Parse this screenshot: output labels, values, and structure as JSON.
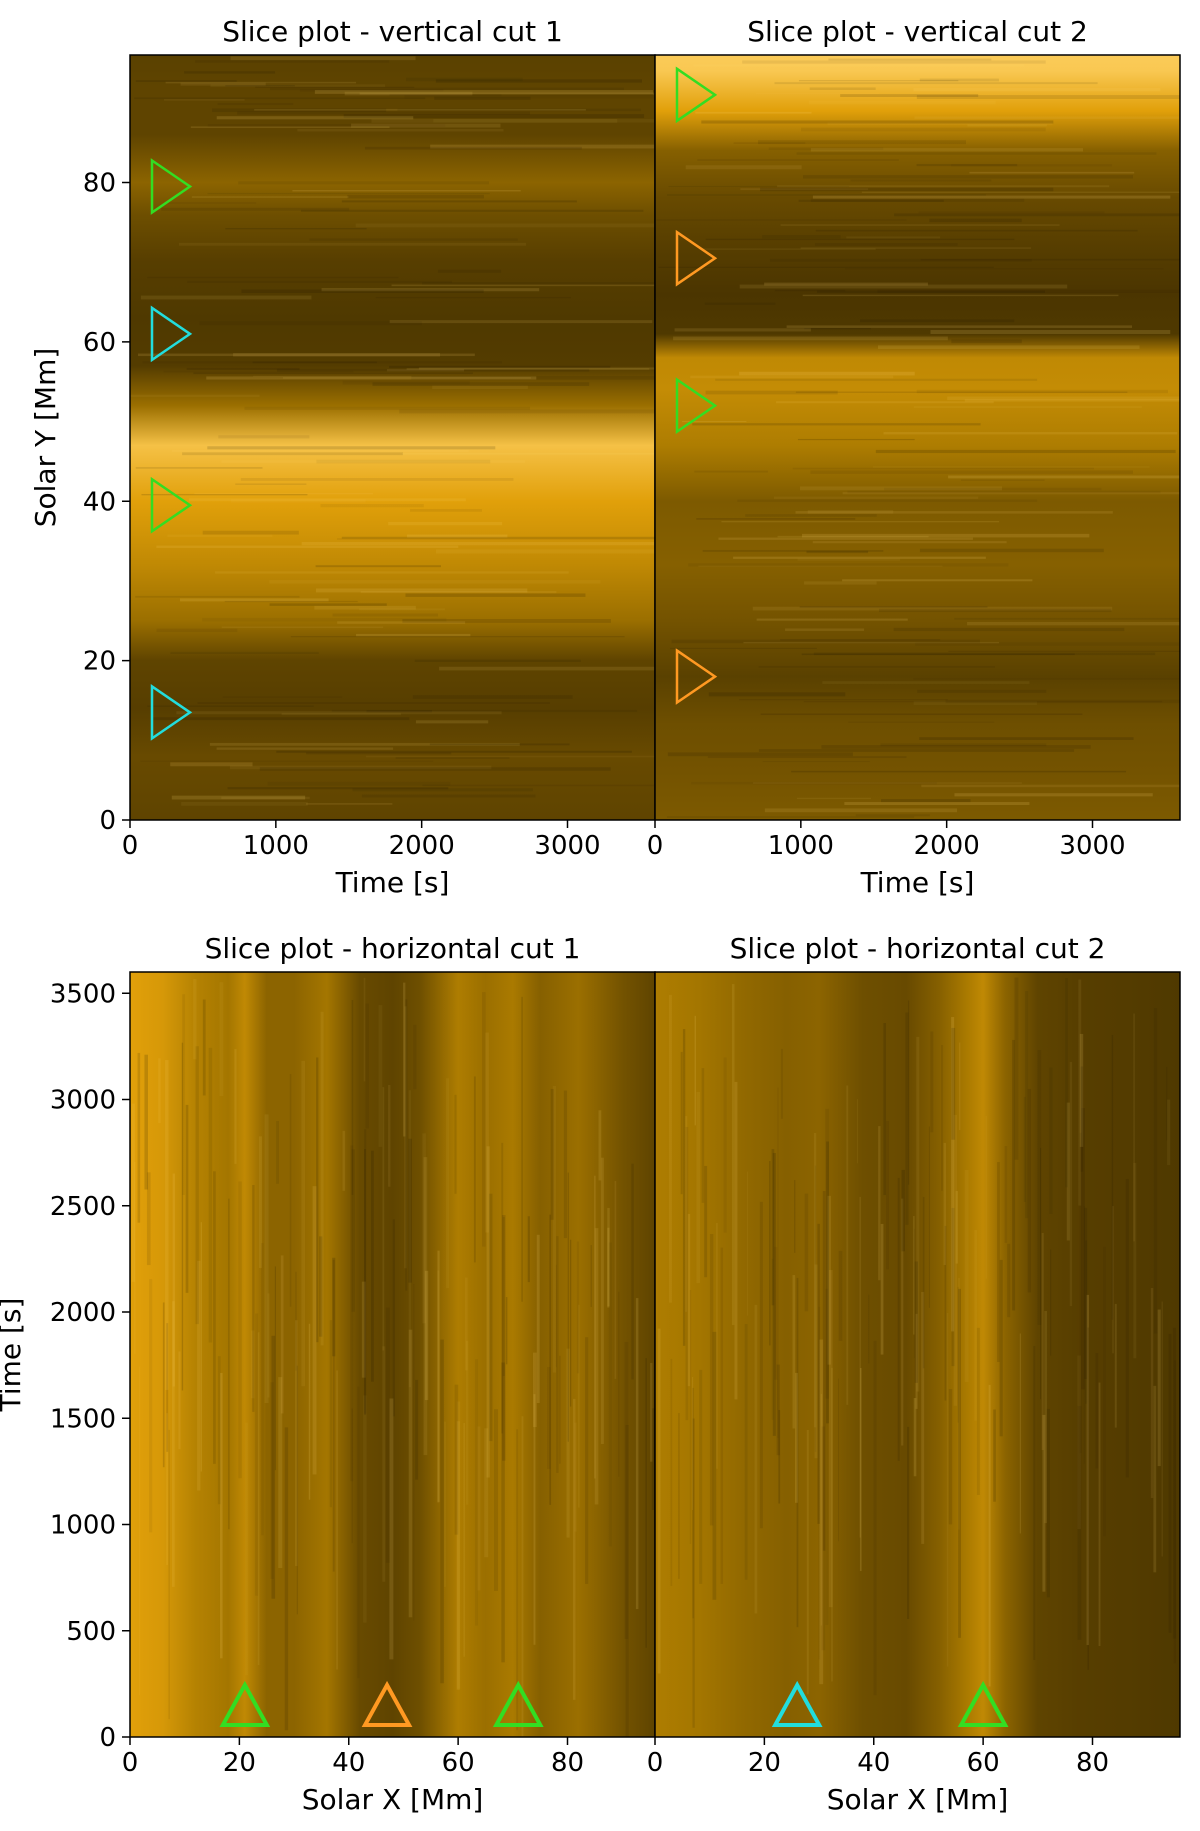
{
  "figure": {
    "colors": {
      "dark": "#3a2a00",
      "mid": "#7a5800",
      "bright": "#d8a000",
      "peak": "#ffd060",
      "marker_green": "#33dd22",
      "marker_cyan": "#22dddd",
      "marker_orange": "#ff9922"
    }
  },
  "chart_data": [
    {
      "type": "heatmap",
      "title": "Slice plot - vertical cut 1",
      "xlabel": "Time [s]",
      "ylabel": "Solar Y [Mm]",
      "xlim": [
        0,
        3600
      ],
      "ylim": [
        0,
        96
      ],
      "xticks": [
        0,
        1000,
        2000,
        3000
      ],
      "yticks": [
        0,
        20,
        40,
        60,
        80
      ],
      "orientation": "horizontal-bands",
      "intensity_profile": [
        {
          "pos": 0,
          "i": 0.35
        },
        {
          "pos": 8,
          "i": 0.38
        },
        {
          "pos": 14,
          "i": 0.3
        },
        {
          "pos": 20,
          "i": 0.35
        },
        {
          "pos": 25,
          "i": 0.55
        },
        {
          "pos": 32,
          "i": 0.7
        },
        {
          "pos": 40,
          "i": 0.85
        },
        {
          "pos": 47,
          "i": 0.95
        },
        {
          "pos": 52,
          "i": 0.55
        },
        {
          "pos": 57,
          "i": 0.28
        },
        {
          "pos": 63,
          "i": 0.25
        },
        {
          "pos": 70,
          "i": 0.3
        },
        {
          "pos": 76,
          "i": 0.4
        },
        {
          "pos": 80,
          "i": 0.5
        },
        {
          "pos": 86,
          "i": 0.35
        },
        {
          "pos": 92,
          "i": 0.35
        },
        {
          "pos": 96,
          "i": 0.32
        }
      ],
      "markers": [
        {
          "pos": 79.5,
          "color": "green"
        },
        {
          "pos": 61,
          "color": "cyan"
        },
        {
          "pos": 39.5,
          "color": "green"
        },
        {
          "pos": 13.5,
          "color": "cyan"
        }
      ]
    },
    {
      "type": "heatmap",
      "title": "Slice plot - vertical cut 2",
      "xlabel": "Time [s]",
      "ylabel": "",
      "xlim": [
        0,
        3600
      ],
      "ylim": [
        0,
        96
      ],
      "xticks": [
        0,
        1000,
        2000,
        3000
      ],
      "yticks": [],
      "orientation": "horizontal-bands",
      "intensity_profile": [
        {
          "pos": 0,
          "i": 0.45
        },
        {
          "pos": 6,
          "i": 0.42
        },
        {
          "pos": 12,
          "i": 0.4
        },
        {
          "pos": 18,
          "i": 0.32
        },
        {
          "pos": 25,
          "i": 0.42
        },
        {
          "pos": 32,
          "i": 0.48
        },
        {
          "pos": 40,
          "i": 0.45
        },
        {
          "pos": 47,
          "i": 0.62
        },
        {
          "pos": 54,
          "i": 0.72
        },
        {
          "pos": 58,
          "i": 0.7
        },
        {
          "pos": 61,
          "i": 0.25
        },
        {
          "pos": 66,
          "i": 0.22
        },
        {
          "pos": 72,
          "i": 0.3
        },
        {
          "pos": 78,
          "i": 0.38
        },
        {
          "pos": 84,
          "i": 0.48
        },
        {
          "pos": 89,
          "i": 0.85
        },
        {
          "pos": 94,
          "i": 0.97
        },
        {
          "pos": 96,
          "i": 0.98
        }
      ],
      "markers": [
        {
          "pos": 91,
          "color": "green"
        },
        {
          "pos": 70.5,
          "color": "orange"
        },
        {
          "pos": 52,
          "color": "green"
        },
        {
          "pos": 18,
          "color": "orange"
        }
      ]
    },
    {
      "type": "heatmap",
      "title": "Slice plot - horizontal cut 1",
      "xlabel": "Solar X [Mm]",
      "ylabel": "Time [s]",
      "xlim": [
        0,
        96
      ],
      "ylim": [
        0,
        3600
      ],
      "xticks": [
        0,
        20,
        40,
        60,
        80
      ],
      "yticks": [
        0,
        500,
        1000,
        1500,
        2000,
        2500,
        3000,
        3500
      ],
      "orientation": "vertical-bands",
      "intensity_profile": [
        {
          "pos": 0,
          "i": 0.85
        },
        {
          "pos": 6,
          "i": 0.8
        },
        {
          "pos": 12,
          "i": 0.65
        },
        {
          "pos": 18,
          "i": 0.58
        },
        {
          "pos": 21,
          "i": 0.7
        },
        {
          "pos": 25,
          "i": 0.5
        },
        {
          "pos": 30,
          "i": 0.5
        },
        {
          "pos": 36,
          "i": 0.58
        },
        {
          "pos": 42,
          "i": 0.38
        },
        {
          "pos": 48,
          "i": 0.35
        },
        {
          "pos": 53,
          "i": 0.4
        },
        {
          "pos": 60,
          "i": 0.62
        },
        {
          "pos": 65,
          "i": 0.55
        },
        {
          "pos": 70,
          "i": 0.6
        },
        {
          "pos": 75,
          "i": 0.48
        },
        {
          "pos": 82,
          "i": 0.55
        },
        {
          "pos": 90,
          "i": 0.42
        },
        {
          "pos": 96,
          "i": 0.35
        }
      ],
      "markers": [
        {
          "pos": 21,
          "color": "green"
        },
        {
          "pos": 47,
          "color": "orange"
        },
        {
          "pos": 71,
          "color": "green"
        }
      ]
    },
    {
      "type": "heatmap",
      "title": "Slice plot - horizontal cut 2",
      "xlabel": "Solar X [Mm]",
      "ylabel": "",
      "xlim": [
        0,
        96
      ],
      "ylim": [
        0,
        3600
      ],
      "xticks": [
        0,
        20,
        40,
        60,
        80
      ],
      "yticks": [],
      "orientation": "vertical-bands",
      "intensity_profile": [
        {
          "pos": 0,
          "i": 0.62
        },
        {
          "pos": 8,
          "i": 0.58
        },
        {
          "pos": 16,
          "i": 0.52
        },
        {
          "pos": 24,
          "i": 0.48
        },
        {
          "pos": 30,
          "i": 0.5
        },
        {
          "pos": 38,
          "i": 0.4
        },
        {
          "pos": 46,
          "i": 0.38
        },
        {
          "pos": 52,
          "i": 0.48
        },
        {
          "pos": 57,
          "i": 0.6
        },
        {
          "pos": 60,
          "i": 0.7
        },
        {
          "pos": 64,
          "i": 0.5
        },
        {
          "pos": 70,
          "i": 0.35
        },
        {
          "pos": 78,
          "i": 0.3
        },
        {
          "pos": 86,
          "i": 0.28
        },
        {
          "pos": 96,
          "i": 0.25
        }
      ],
      "markers": [
        {
          "pos": 26,
          "color": "cyan"
        },
        {
          "pos": 60,
          "color": "green"
        }
      ]
    }
  ]
}
